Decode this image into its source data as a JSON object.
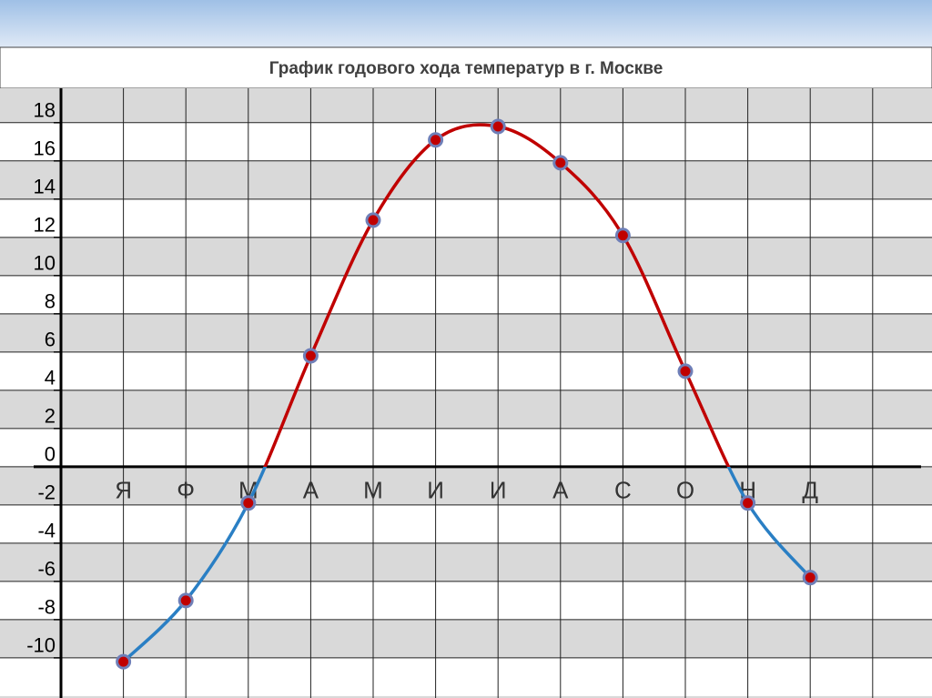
{
  "chart_data": {
    "type": "line",
    "title": "График годового хода температур в г. Москве",
    "categories": [
      "Я",
      "Ф",
      "М",
      "А",
      "М",
      "И",
      "И",
      "А",
      "С",
      "О",
      "Н",
      "Д"
    ],
    "values": [
      -10.2,
      -7,
      -1.9,
      5.8,
      12.9,
      17.1,
      17.8,
      15.9,
      12.1,
      5,
      -1.9,
      -5.8
    ],
    "ylim": [
      -12.1,
      19.8
    ],
    "yticks": [
      -10,
      -8,
      -6,
      -4,
      -2,
      0,
      2,
      4,
      6,
      8,
      10,
      12,
      14,
      16,
      18
    ],
    "grid": true,
    "colors": {
      "above_zero": "#c00000",
      "below_zero": "#2a7fc4",
      "marker_edge": "#6f7fb8",
      "marker_fill": "#c00000"
    }
  }
}
